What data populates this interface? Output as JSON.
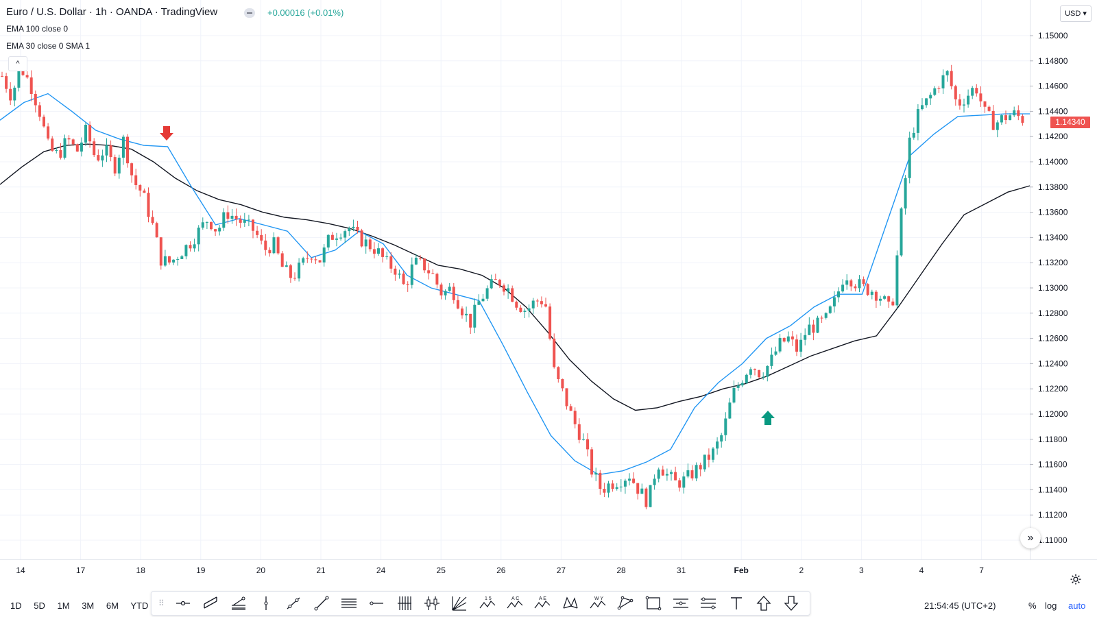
{
  "header": {
    "title": "Euro / U.S. Dollar · 1h · OANDA · TradingView",
    "change": "+0.00016 (+0.01%)",
    "indicators": [
      "EMA 100 close 0",
      "EMA 30 close 0 SMA 1"
    ],
    "collapse_label": "^",
    "currency": "USD"
  },
  "chart_data": {
    "type": "candlestick",
    "symbol": "Euro / U.S. Dollar",
    "interval": "1h",
    "y_ticks": [
      1.15,
      1.148,
      1.146,
      1.144,
      1.142,
      1.14,
      1.138,
      1.136,
      1.134,
      1.132,
      1.13,
      1.128,
      1.126,
      1.124,
      1.122,
      1.12,
      1.118,
      1.116,
      1.114,
      1.112,
      1.11
    ],
    "ylim": [
      1.1087,
      1.152
    ],
    "x_tick_labels": [
      "14",
      "17",
      "18",
      "19",
      "20",
      "21",
      "24",
      "25",
      "26",
      "27",
      "28",
      "31",
      "Feb",
      "2",
      "3",
      "4",
      "7"
    ],
    "last_price": "1.14340",
    "series": [
      {
        "name": "EMA 100 close 0",
        "color": "#131722",
        "values": [
          1.1382,
          1.1396,
          1.1408,
          1.1413,
          1.1414,
          1.1413,
          1.141,
          1.14,
          1.1387,
          1.1377,
          1.137,
          1.1366,
          1.136,
          1.1356,
          1.1354,
          1.1351,
          1.1347,
          1.1341,
          1.1334,
          1.1326,
          1.1318,
          1.1315,
          1.131,
          1.13,
          1.1285,
          1.1265,
          1.1243,
          1.1226,
          1.1212,
          1.1203,
          1.1205,
          1.121,
          1.1214,
          1.122,
          1.1224,
          1.123,
          1.1238,
          1.1246,
          1.1252,
          1.1258,
          1.1262,
          1.1285,
          1.131,
          1.1335,
          1.1358,
          1.1367,
          1.1376,
          1.1381
        ]
      },
      {
        "name": "EMA 30 close 0 SMA 1",
        "color": "#2196f3",
        "values": [
          1.1433,
          1.1447,
          1.1454,
          1.144,
          1.1425,
          1.1418,
          1.1413,
          1.1412,
          1.138,
          1.135,
          1.1355,
          1.135,
          1.1345,
          1.1324,
          1.133,
          1.1345,
          1.1335,
          1.131,
          1.13,
          1.1295,
          1.129,
          1.1255,
          1.1218,
          1.1183,
          1.1163,
          1.1152,
          1.1155,
          1.1162,
          1.1172,
          1.1205,
          1.1225,
          1.124,
          1.126,
          1.127,
          1.1285,
          1.1295,
          1.1295,
          1.135,
          1.1405,
          1.1422,
          1.1436,
          1.1437,
          1.1438,
          1.1438
        ]
      },
      {
        "name": "EUR/USD 1h",
        "values": "approx_ohlc_generated_from_close_path",
        "close_path": [
          1.1468,
          1.1452,
          1.1475,
          1.1462,
          1.144,
          1.141,
          1.1405,
          1.1418,
          1.1408,
          1.1425,
          1.1402,
          1.141,
          1.1395,
          1.1418,
          1.1385,
          1.1375,
          1.1352,
          1.1322,
          1.132,
          1.1328,
          1.1335,
          1.1345,
          1.1355,
          1.1345,
          1.136,
          1.1355,
          1.135,
          1.1345,
          1.133,
          1.1335,
          1.1315,
          1.1308,
          1.1318,
          1.1328,
          1.1322,
          1.134,
          1.1345,
          1.1348,
          1.134,
          1.1335,
          1.133,
          1.132,
          1.1315,
          1.13,
          1.132,
          1.1318,
          1.131,
          1.1295,
          1.13,
          1.1285,
          1.1272,
          1.129,
          1.13,
          1.1306,
          1.13,
          1.1288,
          1.1282,
          1.129,
          1.129,
          1.1232,
          1.1215,
          1.1195,
          1.118,
          1.1155,
          1.114,
          1.1145,
          1.1148,
          1.1152,
          1.114,
          1.113,
          1.1162,
          1.1152,
          1.1145,
          1.1148,
          1.1155,
          1.1162,
          1.117,
          1.1185,
          1.1215,
          1.1228,
          1.124,
          1.1232,
          1.124,
          1.1255,
          1.126,
          1.125,
          1.1268,
          1.127,
          1.1275,
          1.129,
          1.1312,
          1.1305,
          1.13,
          1.1298,
          1.1292,
          1.128,
          1.1355,
          1.142,
          1.144,
          1.145,
          1.1462,
          1.147,
          1.1445,
          1.1452,
          1.146,
          1.1438,
          1.143,
          1.1435,
          1.1438,
          1.1434
        ]
      }
    ],
    "annotations": [
      {
        "type": "arrow-down",
        "color": "#e53935",
        "x_label": "18"
      },
      {
        "type": "arrow-up",
        "color": "#089981",
        "x_label": "Feb"
      }
    ]
  },
  "time_ranges": [
    "1D",
    "5D",
    "1M",
    "3M",
    "6M",
    "YTD"
  ],
  "drawing_tools": [
    "crosshair-tool",
    "parallel-channel-tool",
    "pitchfork-tool",
    "vertical-line-tool",
    "trend-angle-tool",
    "trend-line-tool",
    "horizontal-lines-tool",
    "horizontal-ray-tool",
    "grid-lines-tool",
    "candles-pattern-tool",
    "gann-fan-tool",
    "elliott-wave-tool",
    "abcd-pattern-tool",
    "ae-pattern-tool",
    "xabcd-pattern-tool",
    "wxy-pattern-tool",
    "triangle-tool",
    "rectangle-tool",
    "price-range-tool",
    "date-range-tool",
    "text-tool",
    "arrow-up-tool",
    "arrow-down-tool"
  ],
  "elliott_labels": {
    "wave": "1 5",
    "abc": "A C",
    "ae": "A E",
    "wxy": "W Y"
  },
  "status": {
    "clock": "21:54:45 (UTC+2)",
    "percent": "%",
    "log": "log",
    "auto": "auto",
    "fast_forward": "»"
  },
  "colors": {
    "up": "#26a69a",
    "down": "#ef5350",
    "grid": "#f0f3fa",
    "ema100": "#131722",
    "ema30": "#2196f3"
  }
}
